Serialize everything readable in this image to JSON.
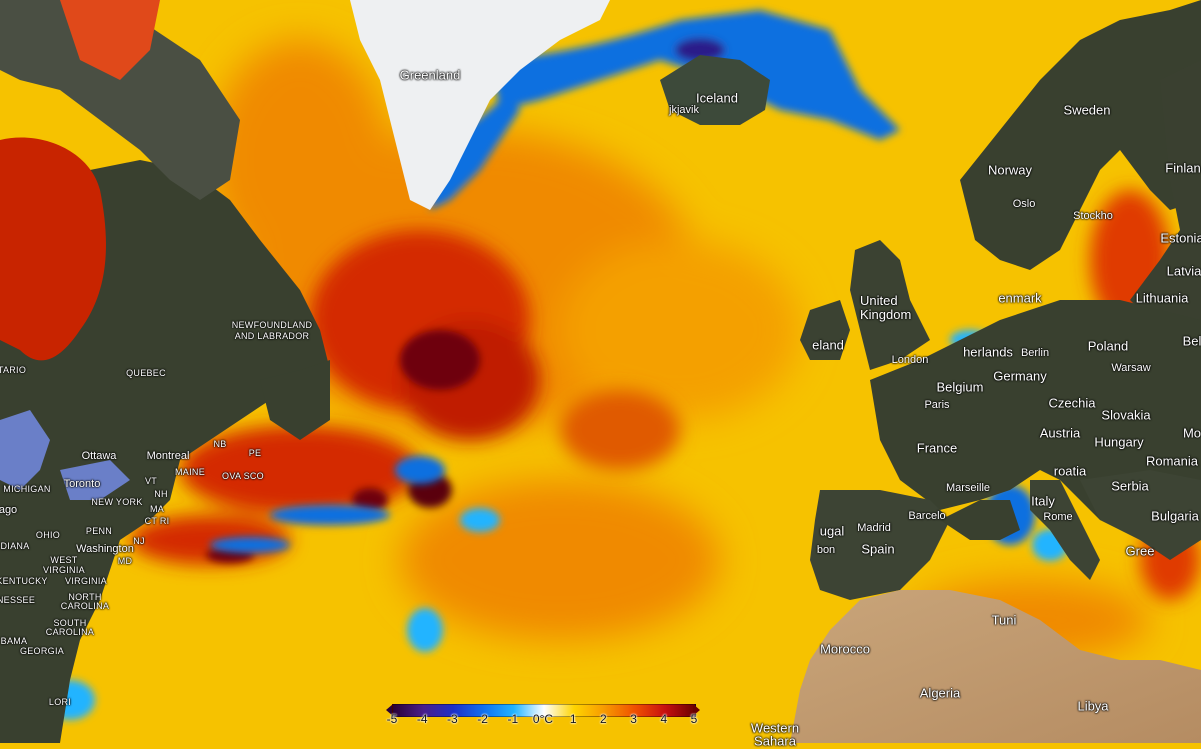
{
  "map": {
    "type": "sea-surface-temperature-anomaly",
    "colors": {
      "ocean_base": "#f6c200",
      "warm": "#f08a00",
      "hot": "#d42a00",
      "very_hot": "#6e0008",
      "cold": "#0a6fe0",
      "very_cold": "#2a1b8a",
      "land": "#39402f",
      "ice": "#eef0f2",
      "desert": "#c9a57a"
    }
  },
  "labels": {
    "greenland": "Greenland",
    "iceland": "Iceland",
    "reykjavik": "jkjavik",
    "sweden": "Sweden",
    "finland": "Finlan",
    "norway": "Norway",
    "oslo": "Oslo",
    "stockholm": "Stockho",
    "estonia": "Estonia",
    "latvia": "Latvia",
    "lithuania": "Lithuania",
    "denmark": "enmark",
    "united_kingdom": "United Kingdom",
    "ireland": "eland",
    "london": "London",
    "netherlands": "herlands",
    "berlin": "Berlin",
    "poland": "Poland",
    "belarus": "Bel",
    "warsaw": "Warsaw",
    "belgium": "Belgium",
    "germany": "Germany",
    "paris": "Paris",
    "czechia": "Czechia",
    "slovakia": "Slovakia",
    "austria": "Austria",
    "hungary": "Hungary",
    "moldova": "Mo",
    "france": "France",
    "romania": "Romania",
    "croatia": "roatia",
    "serbia": "Serbia",
    "marseille": "Marseille",
    "italy": "Italy",
    "rome": "Rome",
    "bulgaria": "Bulgaria",
    "barcelona": "Barcelo",
    "madrid": "Madrid",
    "spain": "Spain",
    "portugal": "ugal",
    "lisbon": "bon",
    "greece": "Gree",
    "tunisia": "Tuni",
    "morocco": "Morocco",
    "algeria": "Algeria",
    "libya": "Libya",
    "western_sahara_1": "Western",
    "western_sahara_2": "Sahara",
    "newfoundland_1": "NEWFOUNDLAND",
    "newfoundland_2": "AND LABRADOR",
    "ontario": "TARIO",
    "quebec": "QUEBEC",
    "ottawa": "Ottawa",
    "montreal": "Montreal",
    "maine": "MAINE",
    "nb": "NB",
    "pe": "PE",
    "nova_scotia": "OVA SCO",
    "michigan": "MICHIGAN",
    "toronto": "Toronto",
    "vt": "VT",
    "nh": "NH",
    "new_york": "NEW YORK",
    "ma": "MA",
    "ct": "CT RI",
    "chicago": "ago",
    "ohio": "OHIO",
    "penn": "PENN",
    "nj": "NJ",
    "indiana": "DIANA",
    "west_virginia_1": "WEST",
    "west_virginia_2": "VIRGINIA",
    "washington": "Washington",
    "md": "MD",
    "kentucky": "KENTUCKY",
    "virginia": "VIRGINIA",
    "tennessee": "NESSEE",
    "north_carolina_1": "NORTH",
    "north_carolina_2": "CAROLINA",
    "south_carolina_1": "SOUTH",
    "south_carolina_2": "CAROLINA",
    "alabama": "BAMA",
    "georgia": "GEORGIA",
    "florida": "LORI"
  },
  "legend": {
    "unit": "°C",
    "ticks": [
      "-5",
      "-4",
      "-3",
      "-2",
      "-1",
      "0°C",
      "1",
      "2",
      "3",
      "4",
      "5"
    ],
    "min": -5,
    "max": 5,
    "colors": [
      "#2a0036",
      "#4a1e8a",
      "#1e2fc8",
      "#1070f0",
      "#22b4ff",
      "#ffffff",
      "#ffd400",
      "#f79a00",
      "#f05000",
      "#c81010",
      "#6b0000"
    ]
  }
}
